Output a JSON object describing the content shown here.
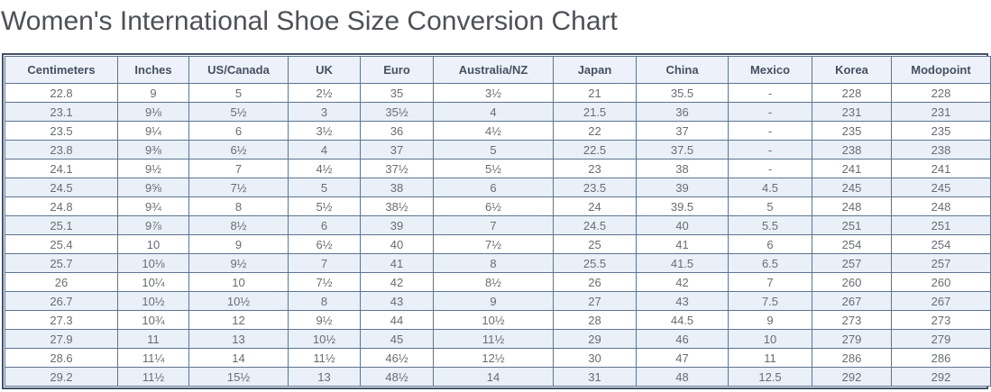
{
  "title": "Women's International Shoe Size Conversion Chart",
  "colors": {
    "title_text": "#4d5156",
    "outer_border": "#42526b",
    "cell_border": "#5d7491",
    "header_bg": "#edf2fa",
    "alt_row_bg": "#e9f0f8",
    "header_text": "#455060",
    "cell_text": "#686d73"
  },
  "chart_data": {
    "type": "table",
    "title": "Women's International Shoe Size Conversion Chart",
    "columns": [
      "Centimeters",
      "Inches",
      "US/Canada",
      "UK",
      "Euro",
      "Australia/NZ",
      "Japan",
      "China",
      "Mexico",
      "Korea",
      "Modopoint"
    ],
    "rows": [
      [
        "22.8",
        "9",
        "5",
        "2½",
        "35",
        "3½",
        "21",
        "35.5",
        "-",
        "228",
        "228"
      ],
      [
        "23.1",
        "9⅛",
        "5½",
        "3",
        "35½",
        "4",
        "21.5",
        "36",
        "-",
        "231",
        "231"
      ],
      [
        "23.5",
        "9¼",
        "6",
        "3½",
        "36",
        "4½",
        "22",
        "37",
        "-",
        "235",
        "235"
      ],
      [
        "23.8",
        "9⅜",
        "6½",
        "4",
        "37",
        "5",
        "22.5",
        "37.5",
        "-",
        "238",
        "238"
      ],
      [
        "24.1",
        "9½",
        "7",
        "4½",
        "37½",
        "5½",
        "23",
        "38",
        "-",
        "241",
        "241"
      ],
      [
        "24.5",
        "9⅝",
        "7½",
        "5",
        "38",
        "6",
        "23.5",
        "39",
        "4.5",
        "245",
        "245"
      ],
      [
        "24.8",
        "9¾",
        "8",
        "5½",
        "38½",
        "6½",
        "24",
        "39.5",
        "5",
        "248",
        "248"
      ],
      [
        "25.1",
        "9⅞",
        "8½",
        "6",
        "39",
        "7",
        "24.5",
        "40",
        "5.5",
        "251",
        "251"
      ],
      [
        "25.4",
        "10",
        "9",
        "6½",
        "40",
        "7½",
        "25",
        "41",
        "6",
        "254",
        "254"
      ],
      [
        "25.7",
        "10⅛",
        "9½",
        "7",
        "41",
        "8",
        "25.5",
        "41.5",
        "6.5",
        "257",
        "257"
      ],
      [
        "26",
        "10¼",
        "10",
        "7½",
        "42",
        "8½",
        "26",
        "42",
        "7",
        "260",
        "260"
      ],
      [
        "26.7",
        "10½",
        "10½",
        "8",
        "43",
        "9",
        "27",
        "43",
        "7.5",
        "267",
        "267"
      ],
      [
        "27.3",
        "10¾",
        "12",
        "9½",
        "44",
        "10½",
        "28",
        "44.5",
        "9",
        "273",
        "273"
      ],
      [
        "27.9",
        "11",
        "13",
        "10½",
        "45",
        "11½",
        "29",
        "46",
        "10",
        "279",
        "279"
      ],
      [
        "28.6",
        "11¼",
        "14",
        "11½",
        "46½",
        "12½",
        "30",
        "47",
        "11",
        "286",
        "286"
      ],
      [
        "29.2",
        "11½",
        "15½",
        "13",
        "48½",
        "14",
        "31",
        "48",
        "12.5",
        "292",
        "292"
      ]
    ]
  }
}
